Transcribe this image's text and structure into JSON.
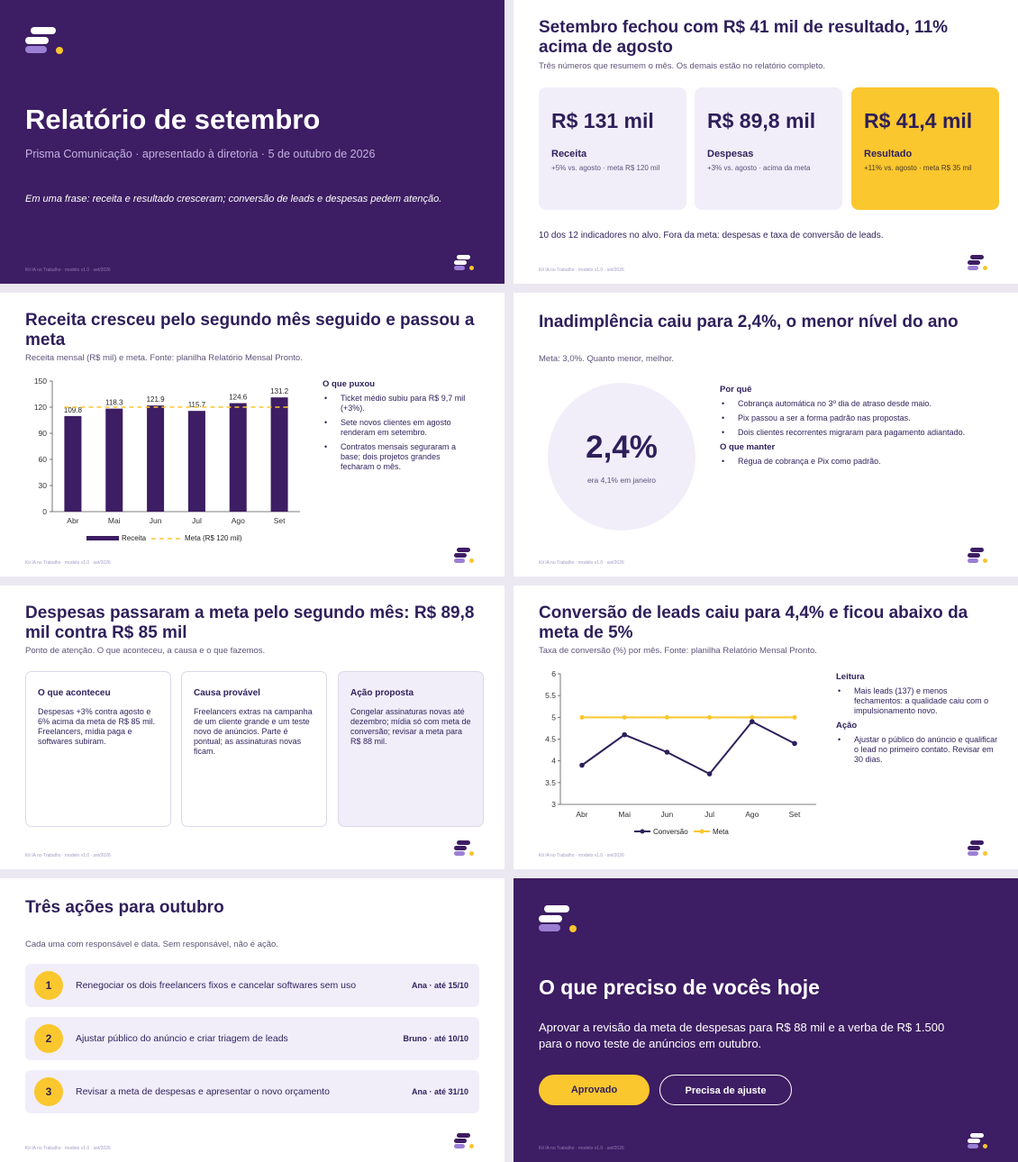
{
  "footer": "Kit IA no Trabalho · modelo v1.0 · set/2026",
  "colors": {
    "primary": "#3d1d63",
    "accent": "#fbc72e",
    "soft": "#f1eefa"
  },
  "slide1": {
    "title": "Relatório de setembro",
    "subtitle": "Prisma Comunicação · apresentado à diretoria · 5 de outubro de 2026",
    "phrase": "Em uma frase: receita e resultado cresceram; conversão de leads e despesas pedem atenção."
  },
  "slide2": {
    "title": "Setembro fechou com R$ 41 mil de resultado, 11% acima de agosto",
    "subtitle": "Três números que resumem o mês. Os demais estão no relatório completo.",
    "kpis": [
      {
        "value": "R$ 131 mil",
        "label": "Receita",
        "detail": "+5% vs. agosto · meta R$ 120 mil"
      },
      {
        "value": "R$ 89,8 mil",
        "label": "Despesas",
        "detail": "+3% vs. agosto · acima da meta"
      },
      {
        "value": "R$ 41,4 mil",
        "label": "Resultado",
        "detail": "+11% vs. agosto · meta R$ 35 mil"
      }
    ],
    "summary": "10 dos 12 indicadores no alvo. Fora da meta: despesas e taxa de conversão de leads."
  },
  "slide3": {
    "title": "Receita cresceu pelo segundo mês seguido e passou a meta",
    "subtitle": "Receita mensal (R$ mil) e meta. Fonte: planilha Relatório Mensal Pronto.",
    "side_heading": "O que puxou",
    "bullets": [
      "Ticket médio subiu para R$ 9,7 mil (+3%).",
      "Sete novos clientes em agosto renderam em setembro.",
      "Contratos mensais seguraram a base; dois projetos grandes fecharam o mês."
    ]
  },
  "slide4": {
    "title": "Inadimplência caiu para 2,4%, o menor nível do ano",
    "subtitle": "Meta: 3,0%. Quanto menor, melhor.",
    "big_value": "2,4%",
    "big_caption": "era 4,1% em janeiro",
    "why_heading": "Por quê",
    "why_bullets": [
      "Cobrança automática no 3º dia de atraso desde maio.",
      "Pix passou a ser a forma padrão nas propostas.",
      "Dois clientes recorrentes migraram para pagamento adiantado."
    ],
    "keep_heading": "O que manter",
    "keep_bullets": [
      "Régua de cobrança e Pix como padrão."
    ]
  },
  "slide5": {
    "title": "Despesas passaram a meta pelo segundo mês: R$ 89,8 mil contra R$ 85 mil",
    "subtitle": "Ponto de atenção. O que aconteceu, a causa e o que fazemos.",
    "cards": [
      {
        "heading": "O que aconteceu",
        "text": "Despesas +3% contra agosto e 6% acima da meta de R$ 85 mil. Freelancers, mídia paga e softwares subiram."
      },
      {
        "heading": "Causa provável",
        "text": "Freelancers extras na campanha de um cliente grande e um teste novo de anúncios. Parte é pontual; as assinaturas novas ficam."
      },
      {
        "heading": "Ação proposta",
        "text": "Congelar assinaturas novas até dezembro; mídia só com meta de conversão; revisar a meta para R$ 88 mil."
      }
    ]
  },
  "slide6": {
    "title": "Conversão de leads caiu para 4,4% e ficou abaixo da meta de 5%",
    "subtitle": "Taxa de conversão (%) por mês. Fonte: planilha Relatório Mensal Pronto.",
    "read_heading": "Leitura",
    "read_bullets": [
      "Mais leads (137) e menos fechamentos: a qualidade caiu com o impulsionamento novo."
    ],
    "action_heading": "Ação",
    "action_bullets": [
      "Ajustar o público do anúncio e qualificar o lead no primeiro contato. Revisar em 30 dias."
    ]
  },
  "slide7": {
    "title": "Três ações para outubro",
    "subtitle": "Cada uma com responsável e data. Sem responsável, não é ação.",
    "actions": [
      {
        "num": "1",
        "text": "Renegociar os dois freelancers fixos e cancelar softwares sem uso",
        "owner": "Ana · até 15/10"
      },
      {
        "num": "2",
        "text": "Ajustar público do anúncio e criar triagem de leads",
        "owner": "Bruno · até 10/10"
      },
      {
        "num": "3",
        "text": "Revisar a meta de despesas e apresentar o novo orçamento",
        "owner": "Ana · até 31/10"
      }
    ]
  },
  "slide8": {
    "title": "O que preciso de vocês hoje",
    "text": "Aprovar a revisão da meta de despesas para R$ 88 mil e a verba de R$ 1.500 para o novo teste de anúncios em outubro.",
    "approve_label": "Aprovado",
    "adjust_label": "Precisa de ajuste"
  },
  "chart_data": [
    {
      "type": "bar",
      "categories": [
        "Abr",
        "Mai",
        "Jun",
        "Jul",
        "Ago",
        "Set"
      ],
      "series": [
        {
          "name": "Receita",
          "values": [
            109.8,
            118.3,
            121.9,
            115.7,
            124.6,
            131.2
          ],
          "color": "#3d1d63"
        },
        {
          "name": "Meta (R$ 120 mil)",
          "values": [
            120,
            120,
            120,
            120,
            120,
            120
          ],
          "color": "#fbc72e",
          "style": "dashed-line"
        }
      ],
      "yticks": [
        0,
        30,
        60,
        90,
        120,
        150
      ],
      "ylim": [
        0,
        150
      ],
      "data_labels": [
        "109.8",
        "118.3",
        "121.9",
        "115.7",
        "124.6",
        "131.2"
      ],
      "legend": "bottom"
    },
    {
      "type": "line",
      "categories": [
        "Abr",
        "Mai",
        "Jun",
        "Jul",
        "Ago",
        "Set"
      ],
      "series": [
        {
          "name": "Conversão",
          "values": [
            3.9,
            4.6,
            4.2,
            3.7,
            4.9,
            4.4
          ],
          "color": "#2e1f5a"
        },
        {
          "name": "Meta",
          "values": [
            5,
            5,
            5,
            5,
            5,
            5
          ],
          "color": "#fbc72e"
        }
      ],
      "yticks": [
        "3",
        "3.5",
        "4",
        "4.5",
        "5",
        "5.5",
        "6"
      ],
      "ylim": [
        3,
        6
      ],
      "legend": "bottom"
    }
  ]
}
